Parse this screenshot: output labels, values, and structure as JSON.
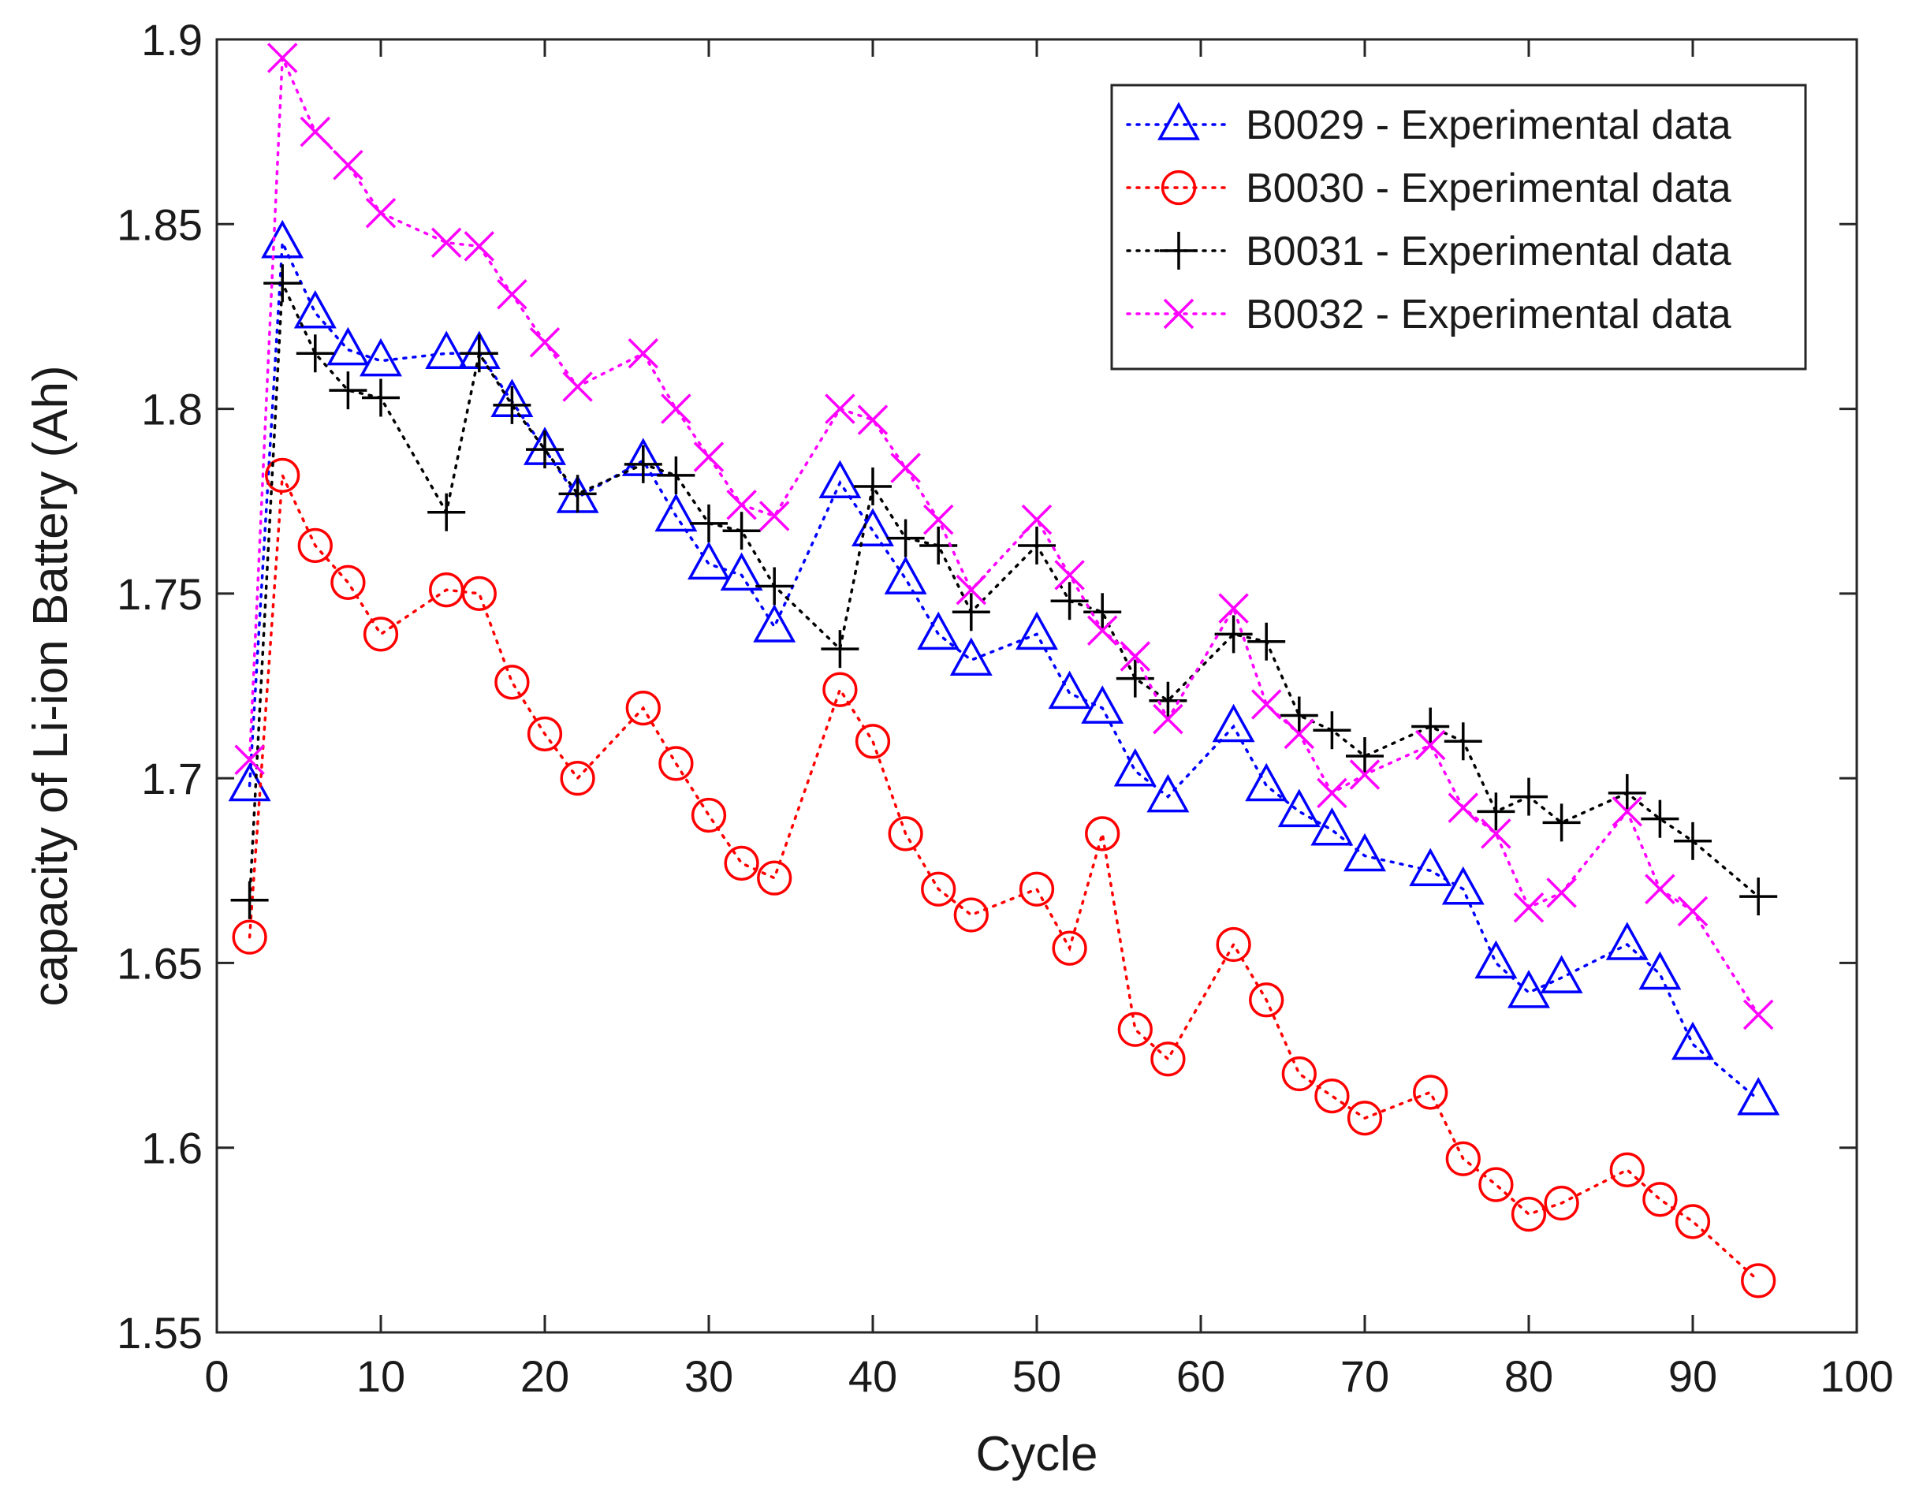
{
  "chart_data": {
    "type": "line",
    "xlabel": "Cycle",
    "ylabel": "capacity of Li-ion Battery (Ah)",
    "xlim": [
      0,
      100
    ],
    "ylim": [
      1.55,
      1.9
    ],
    "xticks": [
      "0",
      "10",
      "20",
      "30",
      "40",
      "50",
      "60",
      "70",
      "80",
      "90",
      "100"
    ],
    "yticks": [
      "1.55",
      "1.6",
      "1.65",
      "1.7",
      "1.75",
      "1.8",
      "1.85",
      "1.9"
    ],
    "grid": false,
    "legend_position": "top-right",
    "series": [
      {
        "name": "B0029 - Experimental data",
        "color": "#0000ff",
        "marker": "triangle",
        "x": [
          2,
          4,
          6,
          8,
          10,
          14,
          16,
          18,
          20,
          22,
          26,
          28,
          30,
          32,
          34,
          38,
          40,
          42,
          44,
          46,
          50,
          52,
          54,
          56,
          58,
          62,
          64,
          66,
          68,
          70,
          74,
          76,
          78,
          80,
          82,
          86,
          88,
          90,
          94
        ],
        "y": [
          1.698,
          1.845,
          1.826,
          1.816,
          1.813,
          1.815,
          1.815,
          1.802,
          1.789,
          1.776,
          1.786,
          1.771,
          1.758,
          1.755,
          1.741,
          1.78,
          1.767,
          1.754,
          1.739,
          1.732,
          1.739,
          1.723,
          1.719,
          1.702,
          1.695,
          1.714,
          1.698,
          1.691,
          1.686,
          1.679,
          1.675,
          1.67,
          1.65,
          1.642,
          1.646,
          1.655,
          1.647,
          1.628,
          1.613
        ]
      },
      {
        "name": "B0030 - Experimental data",
        "color": "#ff0000",
        "marker": "circle",
        "x": [
          2,
          4,
          6,
          8,
          10,
          14,
          16,
          18,
          20,
          22,
          26,
          28,
          30,
          32,
          34,
          38,
          40,
          42,
          44,
          46,
          50,
          52,
          54,
          56,
          58,
          62,
          64,
          66,
          68,
          70,
          74,
          76,
          78,
          80,
          82,
          86,
          88,
          90,
          94
        ],
        "y": [
          1.657,
          1.782,
          1.763,
          1.753,
          1.739,
          1.751,
          1.75,
          1.726,
          1.712,
          1.7,
          1.719,
          1.704,
          1.69,
          1.677,
          1.673,
          1.724,
          1.71,
          1.685,
          1.67,
          1.663,
          1.67,
          1.654,
          1.685,
          1.632,
          1.624,
          1.655,
          1.64,
          1.62,
          1.614,
          1.608,
          1.615,
          1.597,
          1.59,
          1.582,
          1.585,
          1.594,
          1.586,
          1.58,
          1.564
        ]
      },
      {
        "name": "B0031 - Experimental data",
        "color": "#000000",
        "marker": "plus",
        "x": [
          2,
          4,
          6,
          8,
          10,
          14,
          16,
          18,
          20,
          22,
          26,
          28,
          30,
          32,
          34,
          38,
          40,
          42,
          44,
          46,
          50,
          52,
          54,
          56,
          58,
          62,
          64,
          66,
          68,
          70,
          74,
          76,
          78,
          80,
          82,
          86,
          88,
          90,
          94
        ],
        "y": [
          1.667,
          1.834,
          1.815,
          1.805,
          1.803,
          1.772,
          1.815,
          1.801,
          1.789,
          1.777,
          1.785,
          1.782,
          1.769,
          1.767,
          1.752,
          1.735,
          1.779,
          1.765,
          1.763,
          1.745,
          1.763,
          1.748,
          1.745,
          1.727,
          1.721,
          1.739,
          1.737,
          1.717,
          1.713,
          1.706,
          1.714,
          1.71,
          1.691,
          1.695,
          1.688,
          1.696,
          1.689,
          1.683,
          1.668
        ]
      },
      {
        "name": "B0032 - Experimental data",
        "color": "#ff00ff",
        "marker": "cross",
        "x": [
          2,
          4,
          6,
          8,
          10,
          14,
          16,
          18,
          20,
          22,
          26,
          28,
          30,
          32,
          34,
          38,
          40,
          42,
          44,
          46,
          50,
          52,
          54,
          56,
          58,
          62,
          64,
          66,
          68,
          70,
          74,
          76,
          78,
          80,
          82,
          86,
          88,
          90,
          94
        ],
        "y": [
          1.705,
          1.895,
          1.875,
          1.866,
          1.853,
          1.845,
          1.844,
          1.831,
          1.818,
          1.806,
          1.815,
          1.8,
          1.787,
          1.774,
          1.771,
          1.8,
          1.797,
          1.784,
          1.77,
          1.751,
          1.77,
          1.755,
          1.74,
          1.733,
          1.716,
          1.746,
          1.72,
          1.712,
          1.696,
          1.701,
          1.709,
          1.692,
          1.685,
          1.665,
          1.669,
          1.691,
          1.67,
          1.664,
          1.636
        ]
      }
    ]
  }
}
